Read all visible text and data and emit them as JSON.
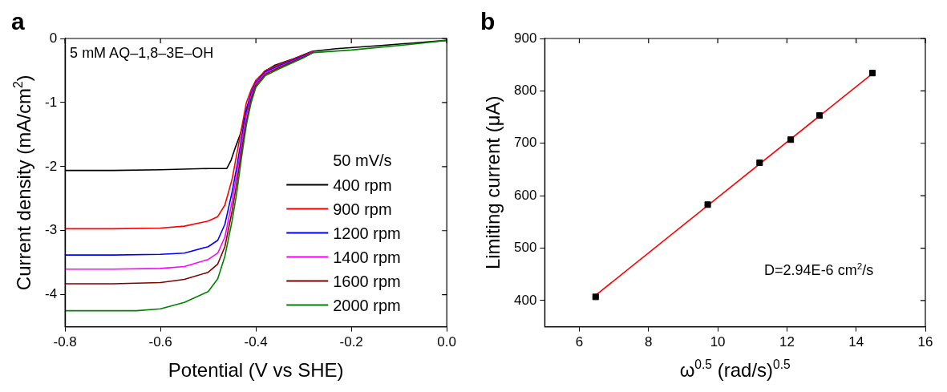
{
  "chart_data": [
    {
      "type": "line",
      "title": "a",
      "xlabel": "Potential (V vs SHE)",
      "ylabel": "Current density (mA/cm$^{2}$)",
      "legend_title": "50 mV/s",
      "legend": "bottom right",
      "marker": "none",
      "line_style": "solid",
      "grid": false,
      "annotations": [
        "5 mM AQ–1,8–3E–OH"
      ],
      "xlim": [
        -0.8,
        0
      ],
      "ylim": [
        -4.5,
        0
      ],
      "xticks": [
        -0.8,
        -0.6,
        -0.4,
        -0.2,
        {
          "value": 0,
          "label": "0.0"
        }
      ],
      "yticks": [
        -4,
        -3,
        -2,
        -1,
        0
      ],
      "series": [
        {
          "name": "400 rpm",
          "color": "#000000",
          "x": [
            -0.8,
            -0.7,
            -0.6,
            -0.5,
            -0.48,
            -0.461,
            -0.452,
            -0.443,
            -0.433,
            -0.424,
            -0.414,
            -0.398,
            -0.383,
            -0.361,
            -0.326,
            -0.282,
            -0.232,
            -0.138,
            0
          ],
          "values": [
            -2.06,
            -2.06,
            -2.05,
            -2.03,
            -2.03,
            -2.03,
            -1.9,
            -1.7,
            -1.5,
            -1.25,
            -1.0,
            -0.7,
            -0.52,
            -0.42,
            -0.33,
            -0.2,
            -0.16,
            -0.11,
            -0.03
          ]
        },
        {
          "name": "900 rpm",
          "color": "#ff0000",
          "x": [
            -0.8,
            -0.7,
            -0.6,
            -0.55,
            -0.5,
            -0.48,
            -0.465,
            -0.45,
            -0.44,
            -0.43,
            -0.42,
            -0.41,
            -0.4,
            -0.38,
            -0.35,
            -0.3,
            -0.28
          ],
          "values": [
            -2.97,
            -2.97,
            -2.96,
            -2.93,
            -2.85,
            -2.78,
            -2.6,
            -2.2,
            -1.8,
            -1.4,
            -1.0,
            -0.8,
            -0.65,
            -0.5,
            -0.4,
            -0.26,
            -0.2
          ]
        },
        {
          "name": "1200 rpm",
          "color": "#0000ff",
          "x": [
            -0.8,
            -0.7,
            -0.6,
            -0.55,
            -0.5,
            -0.48,
            -0.465,
            -0.45,
            -0.44,
            -0.43,
            -0.42,
            -0.41,
            -0.4,
            -0.38,
            -0.35,
            -0.3,
            -0.28
          ],
          "values": [
            -3.38,
            -3.38,
            -3.37,
            -3.35,
            -3.25,
            -3.15,
            -2.9,
            -2.4,
            -2.0,
            -1.55,
            -1.1,
            -0.85,
            -0.68,
            -0.52,
            -0.42,
            -0.27,
            -0.21
          ]
        },
        {
          "name": "1400 rpm",
          "color": "#ff00ff",
          "x": [
            -0.8,
            -0.7,
            -0.6,
            -0.55,
            -0.5,
            -0.48,
            -0.465,
            -0.45,
            -0.44,
            -0.43,
            -0.42,
            -0.41,
            -0.4,
            -0.38,
            -0.35,
            -0.3,
            -0.28
          ],
          "values": [
            -3.6,
            -3.6,
            -3.59,
            -3.56,
            -3.45,
            -3.35,
            -3.1,
            -2.55,
            -2.1,
            -1.65,
            -1.2,
            -0.9,
            -0.7,
            -0.54,
            -0.44,
            -0.28,
            -0.21
          ]
        },
        {
          "name": "1600 rpm",
          "color": "#800000",
          "x": [
            -0.8,
            -0.7,
            -0.6,
            -0.55,
            -0.5,
            -0.48,
            -0.465,
            -0.45,
            -0.44,
            -0.43,
            -0.42,
            -0.41,
            -0.4,
            -0.38,
            -0.35,
            -0.3,
            -0.28
          ],
          "values": [
            -3.83,
            -3.83,
            -3.81,
            -3.76,
            -3.65,
            -3.52,
            -3.25,
            -2.7,
            -2.25,
            -1.75,
            -1.3,
            -0.95,
            -0.73,
            -0.56,
            -0.45,
            -0.29,
            -0.22
          ]
        },
        {
          "name": "2000 rpm",
          "color": "#008000",
          "x": [
            -0.8,
            -0.7,
            -0.65,
            -0.6,
            -0.55,
            -0.5,
            -0.48,
            -0.465,
            -0.45,
            -0.44,
            -0.43,
            -0.42,
            -0.41,
            -0.4,
            -0.38,
            -0.35,
            -0.3,
            -0.28,
            -0.2,
            -0.1,
            0
          ],
          "values": [
            -4.25,
            -4.25,
            -4.25,
            -4.22,
            -4.12,
            -3.95,
            -3.75,
            -3.4,
            -2.85,
            -2.4,
            -1.85,
            -1.35,
            -1.0,
            -0.76,
            -0.58,
            -0.47,
            -0.3,
            -0.22,
            -0.18,
            -0.11,
            -0.03
          ]
        }
      ]
    },
    {
      "type": "scatter",
      "title": "b",
      "xlabel": "ω$^{0.5}$ (rad/s)$^{0.5}$",
      "ylabel": "Limiting current (μA)",
      "legend": false,
      "grid": false,
      "annotations": [
        "D=2.94E-6 cm$^{2}$/s"
      ],
      "xlim": [
        5,
        16
      ],
      "ylim": [
        350,
        900
      ],
      "xticks": [
        6,
        8,
        10,
        12,
        14,
        16
      ],
      "yticks": [
        400,
        500,
        600,
        700,
        800,
        900
      ],
      "series": [
        {
          "type": "line",
          "color": "#ff0000",
          "marker": "none",
          "line_style": "solid",
          "x": [
            6.47,
            14.47
          ],
          "values": [
            410,
            833
          ]
        },
        {
          "type": "scatter",
          "color": "#000000",
          "marker": "square",
          "x": [
            6.47,
            9.71,
            11.21,
            12.11,
            12.94,
            14.47
          ],
          "values": [
            407,
            583,
            663,
            707,
            753,
            834
          ]
        }
      ]
    }
  ]
}
